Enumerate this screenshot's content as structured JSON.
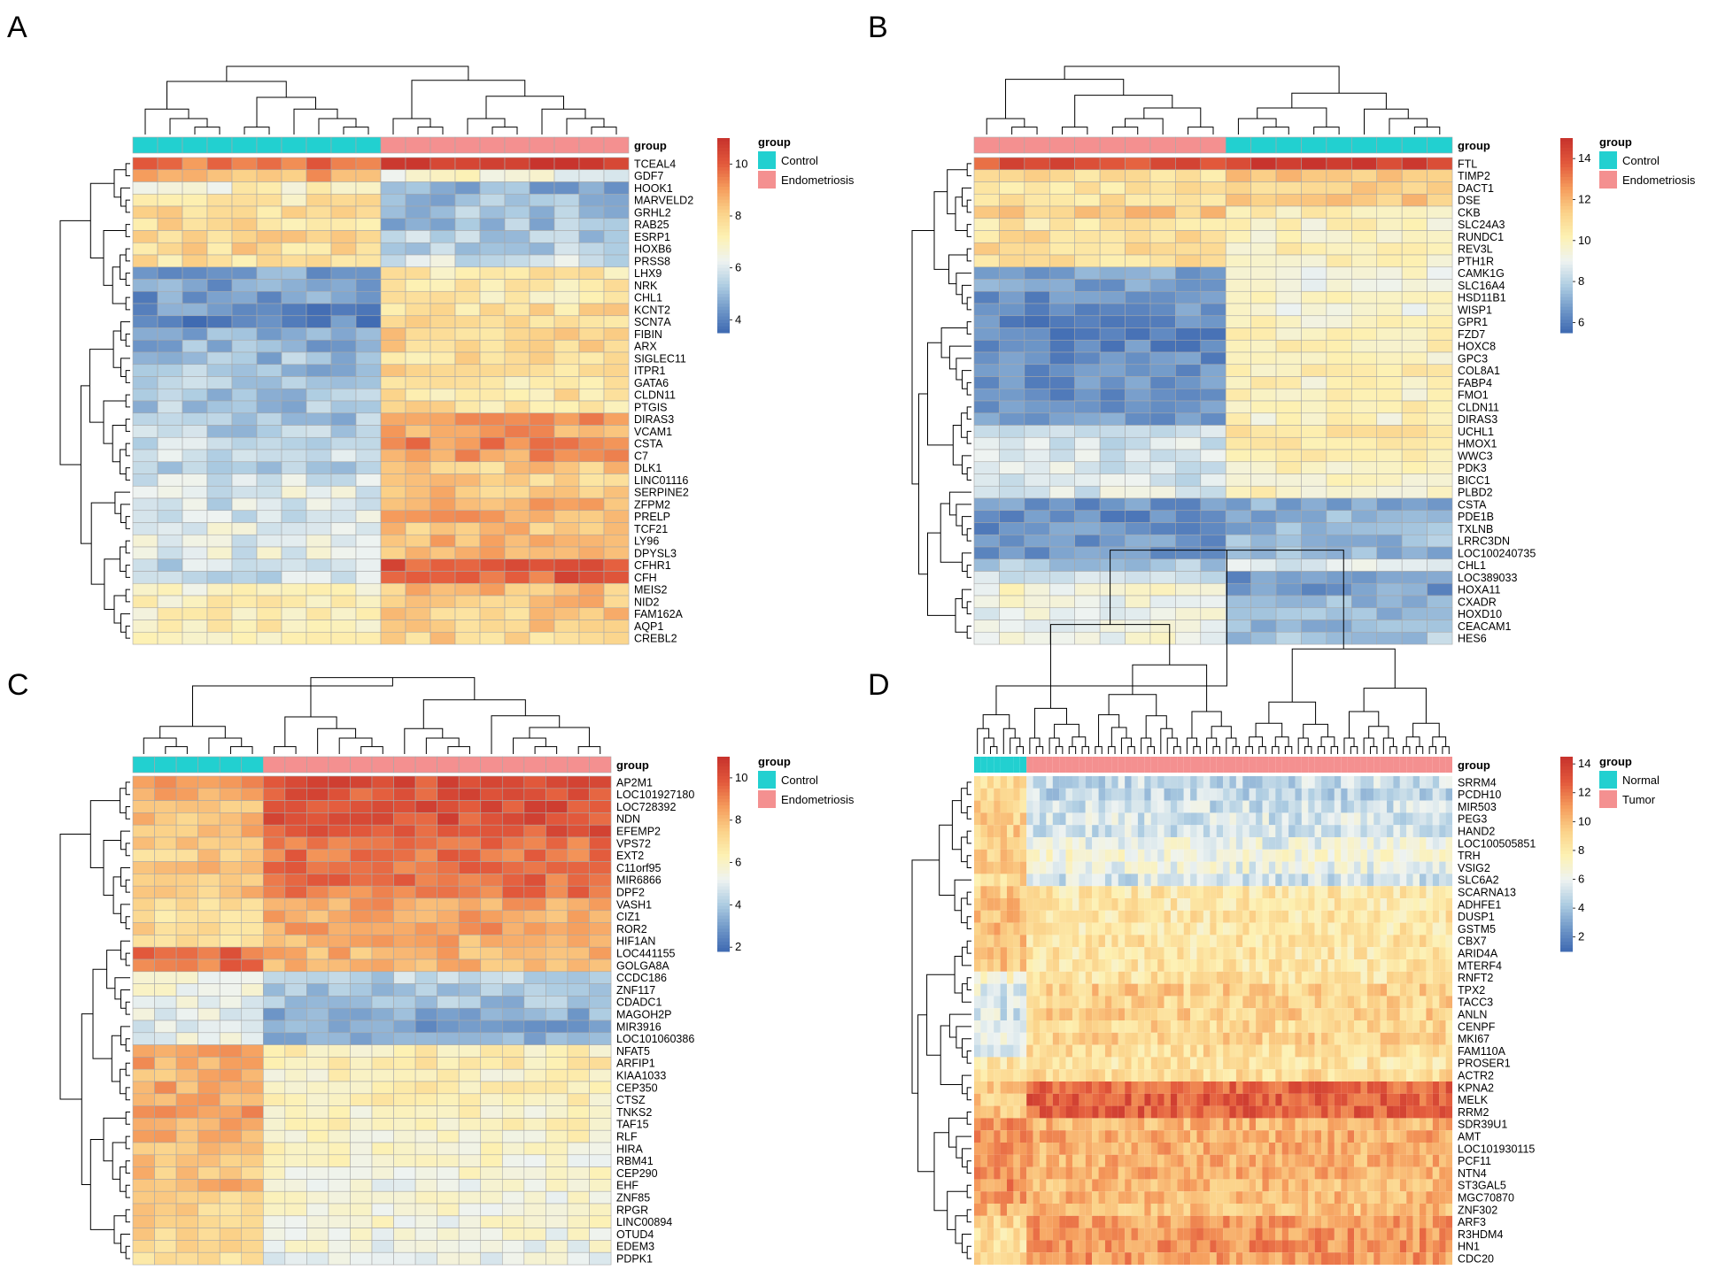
{
  "figure": {
    "colors": {
      "control_group": "#22d0d0",
      "case_group": "#f49090",
      "grid": "#a8a8a8",
      "dendrogram": "#000000",
      "scale": [
        "#3b66b0",
        "#6f97c8",
        "#aecde2",
        "#eef3f1",
        "#fdf1b3",
        "#fbd289",
        "#f59c5c",
        "#e35a3c",
        "#c8342d"
      ]
    },
    "panels": [
      {
        "letter": "A",
        "group_label": "group",
        "legend_title": "group",
        "legend_entries": [
          "Control",
          "Endometriosis"
        ],
        "scale_ticks": [
          "4",
          "6",
          "8",
          "10"
        ],
        "scale_range": [
          3.5,
          11
        ],
        "groups": [
          "control",
          "control",
          "control",
          "control",
          "control",
          "control",
          "control",
          "control",
          "control",
          "control",
          "case",
          "case",
          "case",
          "case",
          "case",
          "case",
          "case",
          "case",
          "case",
          "case"
        ],
        "genes": [
          "TCEAL4",
          "GDF7",
          "HOOK1",
          "MARVELD2",
          "GRHL2",
          "RAB25",
          "ESRP1",
          "HOXB6",
          "PRSS8",
          "LHX9",
          "NRK",
          "CHL1",
          "KCNT2",
          "SCN7A",
          "FIBIN",
          "ARX",
          "SIGLEC11",
          "ITPR1",
          "GATA6",
          "CLDN11",
          "PTGIS",
          "DIRAS3",
          "VCAM1",
          "CSTA",
          "C7",
          "DLK1",
          "LINC01116",
          "SERPINE2",
          "ZFPM2",
          "PRELP",
          "TCF21",
          "LY96",
          "DPYSL3",
          "CFHR1",
          "CFH",
          "MEIS2",
          "NID2",
          "FAM162A",
          "AQP1",
          "CREBL2"
        ],
        "row_means": [
          [
            9.6,
            10.9
          ],
          [
            8.8,
            6.6
          ],
          [
            7.0,
            4.8
          ],
          [
            7.5,
            5.0
          ],
          [
            7.8,
            5.2
          ],
          [
            7.8,
            5.1
          ],
          [
            7.9,
            5.4
          ],
          [
            7.9,
            5.3
          ],
          [
            7.6,
            6.0
          ],
          [
            4.7,
            7.4
          ],
          [
            4.6,
            7.4
          ],
          [
            4.5,
            7.3
          ],
          [
            4.3,
            7.8
          ],
          [
            4.0,
            7.8
          ],
          [
            4.8,
            8.0
          ],
          [
            4.9,
            7.9
          ],
          [
            5.1,
            7.8
          ],
          [
            5.2,
            7.8
          ],
          [
            5.3,
            7.5
          ],
          [
            5.4,
            7.6
          ],
          [
            5.3,
            7.7
          ],
          [
            5.2,
            9.2
          ],
          [
            5.5,
            9.0
          ],
          [
            5.6,
            9.3
          ],
          [
            5.8,
            9.1
          ],
          [
            5.6,
            8.2
          ],
          [
            5.9,
            8.1
          ],
          [
            6.2,
            8.4
          ],
          [
            5.9,
            8.7
          ],
          [
            6.0,
            8.8
          ],
          [
            6.2,
            8.5
          ],
          [
            6.1,
            8.6
          ],
          [
            6.2,
            8.7
          ],
          [
            5.7,
            10.2
          ],
          [
            5.9,
            10.0
          ],
          [
            7.0,
            8.5
          ],
          [
            7.1,
            8.4
          ],
          [
            7.2,
            8.3
          ],
          [
            7.3,
            8.3
          ],
          [
            7.2,
            8.0
          ]
        ]
      },
      {
        "letter": "B",
        "group_label": "group",
        "legend_title": "group",
        "legend_entries": [
          "Control",
          "Endometriosis"
        ],
        "scale_ticks": [
          "6",
          "8",
          "10",
          "12",
          "14"
        ],
        "scale_range": [
          5.5,
          15
        ],
        "groups": [
          "case",
          "case",
          "case",
          "case",
          "case",
          "case",
          "case",
          "case",
          "case",
          "case",
          "control",
          "control",
          "control",
          "control",
          "control",
          "control",
          "control",
          "control",
          "control"
        ],
        "genes": [
          "FTL",
          "TIMP2",
          "DACT1",
          "DSE",
          "CKB",
          "SLC24A3",
          "RUNDC1",
          "REV3L",
          "PTH1R",
          "CAMK1G",
          "SLC16A4",
          "HSD11B1",
          "WISP1",
          "GPR1",
          "FZD7",
          "HOXC8",
          "GPC3",
          "COL8A1",
          "FABP4",
          "FMO1",
          "CLDN11",
          "DIRAS3",
          "UCHL1",
          "HMOX1",
          "WWC3",
          "PDK3",
          "BICC1",
          "PLBD2",
          "CSTA",
          "PDE1B",
          "TXLNB",
          "LRRC3DN",
          "LOC100240735",
          "CHL1",
          "LOC389033",
          "HOXA11",
          "CXADR",
          "HOXD10",
          "CEACAM1",
          "HES6"
        ],
        "row_means": [
          [
            14.8,
            14.0
          ],
          [
            11.5,
            11.0
          ],
          [
            11.4,
            10.9
          ],
          [
            11.5,
            10.8
          ],
          [
            10.4,
            11.6
          ],
          [
            10.0,
            10.6
          ],
          [
            10.1,
            11.0
          ],
          [
            10.2,
            11.1
          ],
          [
            10.0,
            10.9
          ],
          [
            9.6,
            6.9
          ],
          [
            9.5,
            6.8
          ],
          [
            9.7,
            6.5
          ],
          [
            9.6,
            6.6
          ],
          [
            9.8,
            6.3
          ],
          [
            10.0,
            6.3
          ],
          [
            10.1,
            6.4
          ],
          [
            10.0,
            6.5
          ],
          [
            10.2,
            6.4
          ],
          [
            10.1,
            6.5
          ],
          [
            10.0,
            6.3
          ],
          [
            10.2,
            6.6
          ],
          [
            9.9,
            6.8
          ],
          [
            10.6,
            8.5
          ],
          [
            10.5,
            8.6
          ],
          [
            10.4,
            8.5
          ],
          [
            10.1,
            8.7
          ],
          [
            10.0,
            8.6
          ],
          [
            9.9,
            8.8
          ],
          [
            7.2,
            6.6
          ],
          [
            7.3,
            6.3
          ],
          [
            7.4,
            6.5
          ],
          [
            7.5,
            6.7
          ],
          [
            7.5,
            6.6
          ],
          [
            8.6,
            7.8
          ],
          [
            6.5,
            8.6
          ],
          [
            6.8,
            9.6
          ],
          [
            7.4,
            9.3
          ],
          [
            7.5,
            9.1
          ],
          [
            7.6,
            9.2
          ],
          [
            7.8,
            9.4
          ]
        ]
      },
      {
        "letter": "C",
        "group_label": "group",
        "legend_title": "group",
        "legend_entries": [
          "Control",
          "Endometriosis"
        ],
        "scale_ticks": [
          "2",
          "4",
          "6",
          "8",
          "10"
        ],
        "scale_range": [
          1.8,
          11
        ],
        "groups": [
          "control",
          "control",
          "control",
          "control",
          "control",
          "control",
          "case",
          "case",
          "case",
          "case",
          "case",
          "case",
          "case",
          "case",
          "case",
          "case",
          "case",
          "case",
          "case",
          "case",
          "case",
          "case"
        ],
        "genes": [
          "AP2M1",
          "LOC101927180",
          "LOC728392",
          "NDN",
          "EFEMP2",
          "VPS72",
          "EXT2",
          "C11orf95",
          "MIR6866",
          "DPF2",
          "VASH1",
          "CIZ1",
          "ROR2",
          "HIF1AN",
          "LOC441155",
          "GOLGA8A",
          "CCDC186",
          "ZNF117",
          "CDADC1",
          "MAGOH2P",
          "MIR3916",
          "LOC101060386",
          "NFAT5",
          "ARFIP1",
          "KIAA1033",
          "CEP350",
          "CTSZ",
          "TNKS2",
          "TAF15",
          "RLF",
          "HIRA",
          "RBM41",
          "CEP290",
          "EHF",
          "ZNF85",
          "RPGR",
          "LINC00894",
          "OTUD4",
          "EDEM3",
          "PDPK1"
        ],
        "row_means": [
          [
            8.5,
            10.2
          ],
          [
            8.2,
            10.0
          ],
          [
            8.0,
            10.3
          ],
          [
            7.9,
            10.1
          ],
          [
            8.1,
            10.0
          ],
          [
            7.6,
            9.3
          ],
          [
            7.5,
            9.4
          ],
          [
            7.8,
            9.4
          ],
          [
            7.9,
            9.5
          ],
          [
            7.8,
            9.3
          ],
          [
            7.1,
            8.5
          ],
          [
            7.0,
            8.4
          ],
          [
            7.2,
            8.6
          ],
          [
            7.0,
            8.3
          ],
          [
            9.6,
            8.2
          ],
          [
            9.4,
            8.1
          ],
          [
            5.7,
            4.3
          ],
          [
            5.5,
            3.8
          ],
          [
            5.4,
            3.9
          ],
          [
            5.3,
            3.5
          ],
          [
            5.2,
            3.2
          ],
          [
            5.3,
            3.7
          ],
          [
            8.6,
            6.3
          ],
          [
            8.4,
            6.5
          ],
          [
            8.2,
            6.2
          ],
          [
            8.4,
            6.4
          ],
          [
            8.5,
            6.3
          ],
          [
            8.6,
            6.1
          ],
          [
            8.3,
            6.2
          ],
          [
            8.1,
            6.0
          ],
          [
            8.0,
            6.0
          ],
          [
            7.9,
            5.8
          ],
          [
            7.8,
            5.7
          ],
          [
            8.2,
            5.6
          ],
          [
            7.6,
            5.8
          ],
          [
            7.5,
            5.8
          ],
          [
            7.4,
            5.7
          ],
          [
            7.3,
            5.6
          ],
          [
            7.2,
            5.5
          ],
          [
            7.1,
            5.4
          ]
        ]
      },
      {
        "letter": "D",
        "group_label": "group",
        "legend_title": "group",
        "legend_entries": [
          "Normal",
          "Tumor"
        ],
        "scale_ticks": [
          "2",
          "4",
          "6",
          "8",
          "10",
          "12",
          "14"
        ],
        "scale_range": [
          1,
          14.5
        ],
        "n_control": 8,
        "n_case": 65,
        "genes": [
          "SRRM4",
          "PCDH10",
          "MIR503",
          "PEG3",
          "HAND2",
          "LOC100505851",
          "TRH",
          "VSIG2",
          "SLC6A2",
          "SCARNA13",
          "ADHFE1",
          "DUSP1",
          "GSTM5",
          "CBX7",
          "ARID4A",
          "MTERF4",
          "RNFT2",
          "TPX2",
          "TACC3",
          "ANLN",
          "CENPF",
          "MKI67",
          "FAM110A",
          "PROSER1",
          "ACTR2",
          "KPNA2",
          "MELK",
          "RRM2",
          "SDR39U1",
          "AMT",
          "LOC101930115",
          "PCF11",
          "NTN4",
          "ST3GAL5",
          "MGC70870",
          "ZNF302",
          "ARF3",
          "R3HDM4",
          "HN1",
          "CDC20"
        ],
        "row_means": [
          [
            9.0,
            5.0
          ],
          [
            9.2,
            4.8
          ],
          [
            9.1,
            5.2
          ],
          [
            9.4,
            5.4
          ],
          [
            9.5,
            5.3
          ],
          [
            9.0,
            6.0
          ],
          [
            9.3,
            6.6
          ],
          [
            9.2,
            6.2
          ],
          [
            9.0,
            5.4
          ],
          [
            9.6,
            8.2
          ],
          [
            10.2,
            8.1
          ],
          [
            10.0,
            8.3
          ],
          [
            10.1,
            8.2
          ],
          [
            9.9,
            8.4
          ],
          [
            9.8,
            8.3
          ],
          [
            9.7,
            8.4
          ],
          [
            6.8,
            8.5
          ],
          [
            5.8,
            9.4
          ],
          [
            5.6,
            9.2
          ],
          [
            5.5,
            9.3
          ],
          [
            5.7,
            9.1
          ],
          [
            5.6,
            9.2
          ],
          [
            6.2,
            8.8
          ],
          [
            8.5,
            8.4
          ],
          [
            9.0,
            8.9
          ],
          [
            10.0,
            12.6
          ],
          [
            9.6,
            12.8
          ],
          [
            9.8,
            12.7
          ],
          [
            11.3,
            10.4
          ],
          [
            11.5,
            10.6
          ],
          [
            11.0,
            10.5
          ],
          [
            11.2,
            10.4
          ],
          [
            11.6,
            10.5
          ],
          [
            11.4,
            10.2
          ],
          [
            11.1,
            10.3
          ],
          [
            10.5,
            10.0
          ],
          [
            9.0,
            11.0
          ],
          [
            8.8,
            11.2
          ],
          [
            8.6,
            11.3
          ],
          [
            8.5,
            11.1
          ]
        ]
      }
    ]
  }
}
